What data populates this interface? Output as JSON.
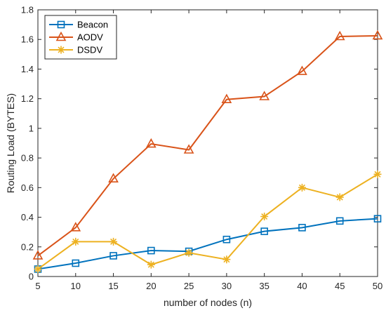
{
  "chart_data": {
    "type": "line",
    "xlabel": "number of nodes (n)",
    "ylabel": "Routing Load (BYTES)",
    "xlim": [
      5,
      50
    ],
    "ylim": [
      0,
      1.8
    ],
    "xticks": [
      5,
      10,
      15,
      20,
      25,
      30,
      35,
      40,
      45,
      50
    ],
    "yticks": [
      0,
      0.2,
      0.4,
      0.6,
      0.8,
      1,
      1.2,
      1.4,
      1.6,
      1.8
    ],
    "grid": false,
    "legend_position": "top-left",
    "x": [
      5,
      10,
      15,
      20,
      25,
      30,
      35,
      40,
      45,
      50
    ],
    "series": [
      {
        "name": "Beacon",
        "marker": "square",
        "color": "#0072BD",
        "values": [
          0.05,
          0.09,
          0.14,
          0.175,
          0.17,
          0.25,
          0.305,
          0.33,
          0.375,
          0.39
        ]
      },
      {
        "name": "AODV",
        "marker": "triangle",
        "color": "#D95319",
        "values": [
          0.14,
          0.33,
          0.66,
          0.895,
          0.855,
          1.195,
          1.215,
          1.385,
          1.62,
          1.625
        ]
      },
      {
        "name": "DSDV",
        "marker": "star",
        "color": "#EDB120",
        "values": [
          0.05,
          0.235,
          0.235,
          0.08,
          0.16,
          0.115,
          0.405,
          0.6,
          0.535,
          0.69
        ]
      }
    ]
  }
}
